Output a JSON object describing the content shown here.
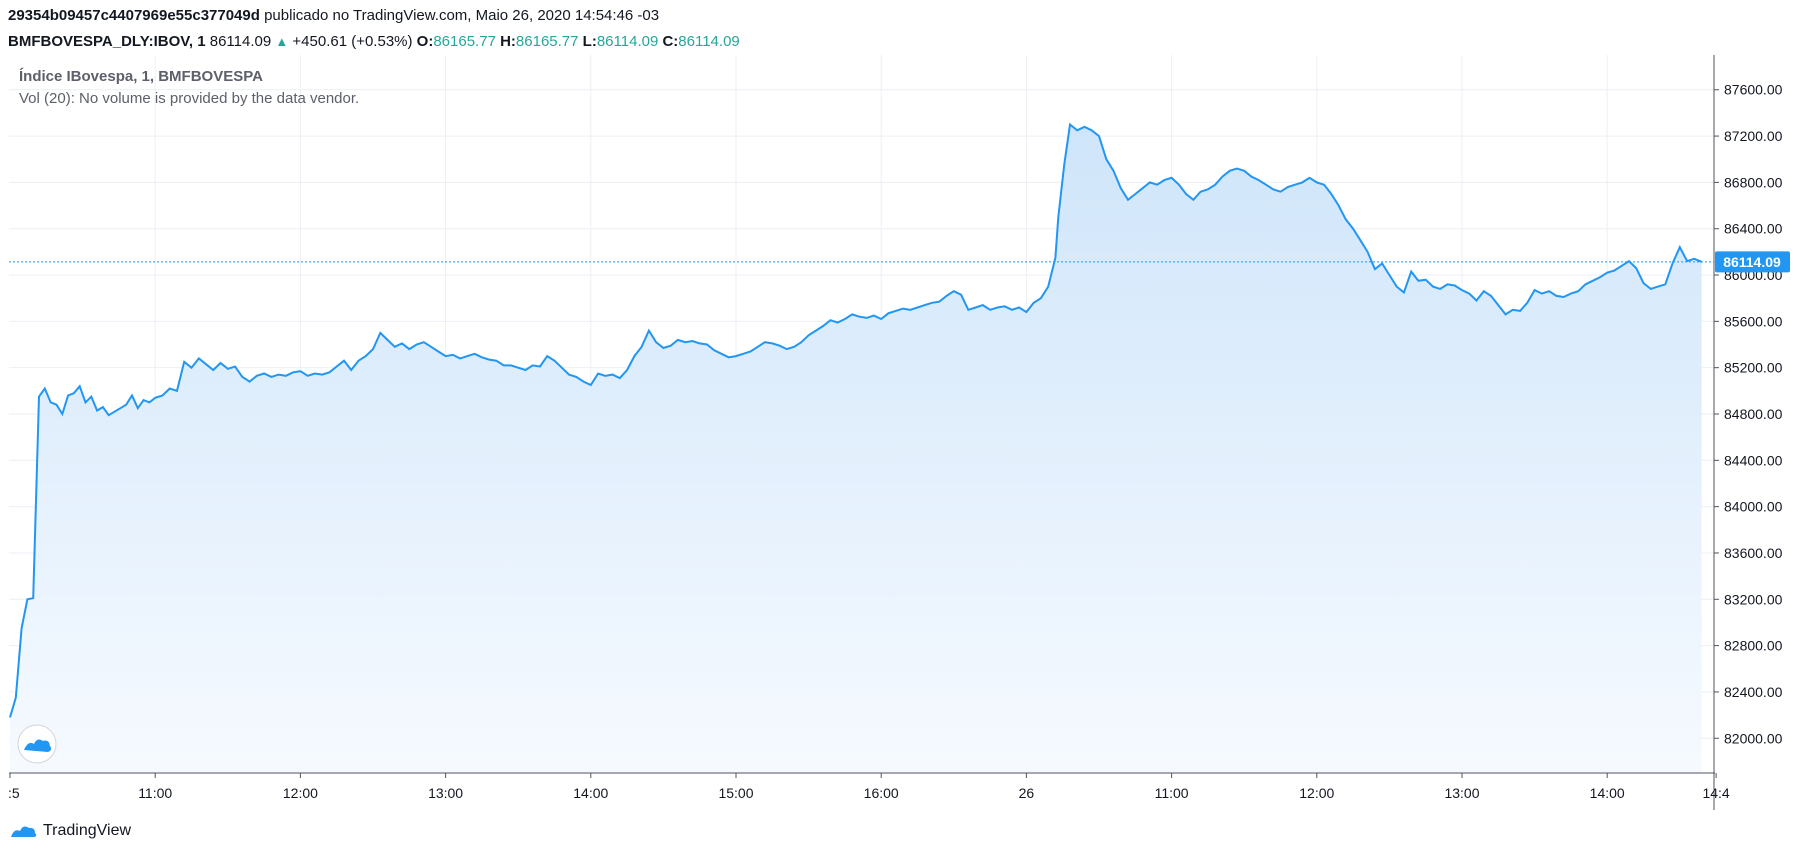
{
  "header": {
    "id": "29354b09457c4407969e55c377049d",
    "publish_text": "publicado no TradingView.com, Maio 26, 2020 14:54:46 -03",
    "symbol": "BMFBOVESPA_DLY:IBOV, 1",
    "last": "86114.09",
    "arrow": "▲",
    "change": "+450.61 (+0.53%)",
    "o_label": "O:",
    "o": "86165.77",
    "h_label": "H:",
    "h": "86165.77",
    "l_label": "L:",
    "l": "86114.09",
    "c_label": "C:",
    "c": "86114.09"
  },
  "legend": {
    "title": "Índice IBovespa, 1, BMFBOVESPA",
    "vol": "Vol (20): No volume is provided by the data vendor."
  },
  "footer": {
    "brand": "TradingView"
  },
  "colors": {
    "line": "#2196f3",
    "fill_top": "#cfe5fa",
    "fill_bottom": "#f6faff",
    "grid": "#eceff4",
    "price_label_bg": "#2196f3"
  },
  "chart_data": {
    "type": "area",
    "ylim": [
      81700,
      87900
    ],
    "y_ticks": [
      82000,
      82400,
      82800,
      83200,
      83600,
      84000,
      84400,
      84800,
      85200,
      85600,
      86000,
      86400,
      86800,
      87200,
      87600
    ],
    "y_tick_labels": [
      "82000.00",
      "82400.00",
      "82800.00",
      "83200.00",
      "83600.00",
      "84000.00",
      "84400.00",
      "84800.00",
      "85200.00",
      "85600.00",
      "86000.00",
      "86400.00",
      "86800.00",
      "87200.00",
      "87600.00"
    ],
    "x_ticks": [
      {
        "label": ":5",
        "t": 0
      },
      {
        "label": "11:00",
        "t": 1
      },
      {
        "label": "12:00",
        "t": 2
      },
      {
        "label": "13:00",
        "t": 3
      },
      {
        "label": "14:00",
        "t": 4
      },
      {
        "label": "15:00",
        "t": 5
      },
      {
        "label": "16:00",
        "t": 6
      },
      {
        "label": "26",
        "t": 7
      },
      {
        "label": "11:00",
        "t": 8
      },
      {
        "label": "12:00",
        "t": 9
      },
      {
        "label": "13:00",
        "t": 10
      },
      {
        "label": "14:00",
        "t": 11
      },
      {
        "label": "14:4",
        "t": 11.75
      }
    ],
    "last_price": 86114.09,
    "last_price_label": "86114.09",
    "series": [
      {
        "points": [
          [
            0.0,
            82180
          ],
          [
            0.04,
            82350
          ],
          [
            0.08,
            82950
          ],
          [
            0.12,
            83200
          ],
          [
            0.16,
            83210
          ],
          [
            0.2,
            84950
          ],
          [
            0.24,
            85020
          ],
          [
            0.28,
            84900
          ],
          [
            0.32,
            84880
          ],
          [
            0.36,
            84800
          ],
          [
            0.4,
            84960
          ],
          [
            0.44,
            84980
          ],
          [
            0.48,
            85040
          ],
          [
            0.52,
            84900
          ],
          [
            0.56,
            84950
          ],
          [
            0.6,
            84830
          ],
          [
            0.64,
            84860
          ],
          [
            0.68,
            84790
          ],
          [
            0.72,
            84820
          ],
          [
            0.76,
            84850
          ],
          [
            0.8,
            84880
          ],
          [
            0.84,
            84960
          ],
          [
            0.88,
            84850
          ],
          [
            0.92,
            84920
          ],
          [
            0.96,
            84900
          ],
          [
            1.0,
            84940
          ],
          [
            1.05,
            84960
          ],
          [
            1.1,
            85020
          ],
          [
            1.15,
            85000
          ],
          [
            1.2,
            85250
          ],
          [
            1.25,
            85200
          ],
          [
            1.3,
            85280
          ],
          [
            1.35,
            85230
          ],
          [
            1.4,
            85180
          ],
          [
            1.45,
            85240
          ],
          [
            1.5,
            85190
          ],
          [
            1.55,
            85210
          ],
          [
            1.6,
            85120
          ],
          [
            1.65,
            85080
          ],
          [
            1.7,
            85130
          ],
          [
            1.75,
            85150
          ],
          [
            1.8,
            85120
          ],
          [
            1.85,
            85140
          ],
          [
            1.9,
            85130
          ],
          [
            1.95,
            85160
          ],
          [
            2.0,
            85170
          ],
          [
            2.05,
            85130
          ],
          [
            2.1,
            85150
          ],
          [
            2.15,
            85140
          ],
          [
            2.2,
            85160
          ],
          [
            2.25,
            85210
          ],
          [
            2.3,
            85260
          ],
          [
            2.35,
            85180
          ],
          [
            2.4,
            85260
          ],
          [
            2.45,
            85300
          ],
          [
            2.5,
            85360
          ],
          [
            2.55,
            85500
          ],
          [
            2.6,
            85440
          ],
          [
            2.65,
            85380
          ],
          [
            2.7,
            85410
          ],
          [
            2.75,
            85360
          ],
          [
            2.8,
            85400
          ],
          [
            2.85,
            85420
          ],
          [
            2.9,
            85380
          ],
          [
            2.95,
            85340
          ],
          [
            3.0,
            85300
          ],
          [
            3.05,
            85310
          ],
          [
            3.1,
            85280
          ],
          [
            3.15,
            85300
          ],
          [
            3.2,
            85320
          ],
          [
            3.25,
            85290
          ],
          [
            3.3,
            85270
          ],
          [
            3.35,
            85260
          ],
          [
            3.4,
            85220
          ],
          [
            3.45,
            85220
          ],
          [
            3.5,
            85200
          ],
          [
            3.55,
            85180
          ],
          [
            3.6,
            85220
          ],
          [
            3.65,
            85210
          ],
          [
            3.7,
            85300
          ],
          [
            3.75,
            85260
          ],
          [
            3.8,
            85200
          ],
          [
            3.85,
            85140
          ],
          [
            3.9,
            85120
          ],
          [
            3.95,
            85080
          ],
          [
            4.0,
            85050
          ],
          [
            4.05,
            85150
          ],
          [
            4.1,
            85130
          ],
          [
            4.15,
            85140
          ],
          [
            4.2,
            85110
          ],
          [
            4.25,
            85180
          ],
          [
            4.3,
            85300
          ],
          [
            4.35,
            85380
          ],
          [
            4.4,
            85520
          ],
          [
            4.45,
            85420
          ],
          [
            4.5,
            85370
          ],
          [
            4.55,
            85390
          ],
          [
            4.6,
            85440
          ],
          [
            4.65,
            85420
          ],
          [
            4.7,
            85430
          ],
          [
            4.75,
            85410
          ],
          [
            4.8,
            85400
          ],
          [
            4.85,
            85350
          ],
          [
            4.9,
            85320
          ],
          [
            4.95,
            85290
          ],
          [
            5.0,
            85300
          ],
          [
            5.05,
            85320
          ],
          [
            5.1,
            85340
          ],
          [
            5.15,
            85380
          ],
          [
            5.2,
            85420
          ],
          [
            5.25,
            85410
          ],
          [
            5.3,
            85390
          ],
          [
            5.35,
            85360
          ],
          [
            5.4,
            85380
          ],
          [
            5.45,
            85420
          ],
          [
            5.5,
            85480
          ],
          [
            5.55,
            85520
          ],
          [
            5.6,
            85560
          ],
          [
            5.65,
            85610
          ],
          [
            5.7,
            85590
          ],
          [
            5.75,
            85620
          ],
          [
            5.8,
            85660
          ],
          [
            5.85,
            85640
          ],
          [
            5.9,
            85630
          ],
          [
            5.95,
            85650
          ],
          [
            6.0,
            85620
          ],
          [
            6.05,
            85670
          ],
          [
            6.1,
            85690
          ],
          [
            6.15,
            85710
          ],
          [
            6.2,
            85700
          ],
          [
            6.25,
            85720
          ],
          [
            6.3,
            85740
          ],
          [
            6.35,
            85760
          ],
          [
            6.4,
            85770
          ],
          [
            6.45,
            85820
          ],
          [
            6.5,
            85860
          ],
          [
            6.55,
            85830
          ],
          [
            6.6,
            85700
          ],
          [
            6.65,
            85720
          ],
          [
            6.7,
            85740
          ],
          [
            6.75,
            85700
          ],
          [
            6.8,
            85720
          ],
          [
            6.85,
            85730
          ],
          [
            6.9,
            85700
          ],
          [
            6.95,
            85720
          ],
          [
            7.0,
            85680
          ],
          [
            7.05,
            85760
          ],
          [
            7.1,
            85800
          ],
          [
            7.15,
            85900
          ],
          [
            7.2,
            86150
          ],
          [
            7.22,
            86500
          ],
          [
            7.26,
            86950
          ],
          [
            7.3,
            87300
          ],
          [
            7.35,
            87250
          ],
          [
            7.4,
            87280
          ],
          [
            7.45,
            87250
          ],
          [
            7.5,
            87200
          ],
          [
            7.55,
            87000
          ],
          [
            7.6,
            86900
          ],
          [
            7.65,
            86750
          ],
          [
            7.7,
            86650
          ],
          [
            7.75,
            86700
          ],
          [
            7.8,
            86750
          ],
          [
            7.85,
            86800
          ],
          [
            7.9,
            86780
          ],
          [
            7.95,
            86820
          ],
          [
            8.0,
            86840
          ],
          [
            8.05,
            86780
          ],
          [
            8.1,
            86700
          ],
          [
            8.15,
            86650
          ],
          [
            8.2,
            86720
          ],
          [
            8.25,
            86740
          ],
          [
            8.3,
            86780
          ],
          [
            8.35,
            86850
          ],
          [
            8.4,
            86900
          ],
          [
            8.45,
            86920
          ],
          [
            8.5,
            86900
          ],
          [
            8.55,
            86850
          ],
          [
            8.6,
            86820
          ],
          [
            8.65,
            86780
          ],
          [
            8.7,
            86740
          ],
          [
            8.75,
            86720
          ],
          [
            8.8,
            86760
          ],
          [
            8.85,
            86780
          ],
          [
            8.9,
            86800
          ],
          [
            8.95,
            86840
          ],
          [
            9.0,
            86800
          ],
          [
            9.05,
            86780
          ],
          [
            9.1,
            86700
          ],
          [
            9.15,
            86600
          ],
          [
            9.2,
            86480
          ],
          [
            9.25,
            86400
          ],
          [
            9.3,
            86300
          ],
          [
            9.35,
            86200
          ],
          [
            9.4,
            86050
          ],
          [
            9.45,
            86100
          ],
          [
            9.5,
            86000
          ],
          [
            9.55,
            85900
          ],
          [
            9.6,
            85850
          ],
          [
            9.65,
            86030
          ],
          [
            9.7,
            85950
          ],
          [
            9.75,
            85960
          ],
          [
            9.8,
            85900
          ],
          [
            9.85,
            85880
          ],
          [
            9.9,
            85920
          ],
          [
            9.95,
            85910
          ],
          [
            10.0,
            85870
          ],
          [
            10.05,
            85840
          ],
          [
            10.1,
            85780
          ],
          [
            10.15,
            85860
          ],
          [
            10.2,
            85820
          ],
          [
            10.25,
            85740
          ],
          [
            10.3,
            85660
          ],
          [
            10.35,
            85700
          ],
          [
            10.4,
            85690
          ],
          [
            10.45,
            85760
          ],
          [
            10.5,
            85870
          ],
          [
            10.55,
            85840
          ],
          [
            10.6,
            85860
          ],
          [
            10.65,
            85820
          ],
          [
            10.7,
            85810
          ],
          [
            10.75,
            85840
          ],
          [
            10.8,
            85860
          ],
          [
            10.85,
            85920
          ],
          [
            10.9,
            85950
          ],
          [
            10.95,
            85980
          ],
          [
            11.0,
            86020
          ],
          [
            11.05,
            86040
          ],
          [
            11.1,
            86080
          ],
          [
            11.15,
            86120
          ],
          [
            11.2,
            86060
          ],
          [
            11.25,
            85930
          ],
          [
            11.3,
            85880
          ],
          [
            11.35,
            85900
          ],
          [
            11.4,
            85920
          ],
          [
            11.45,
            86100
          ],
          [
            11.5,
            86240
          ],
          [
            11.55,
            86120
          ],
          [
            11.6,
            86140
          ],
          [
            11.65,
            86114.09
          ]
        ]
      }
    ]
  }
}
